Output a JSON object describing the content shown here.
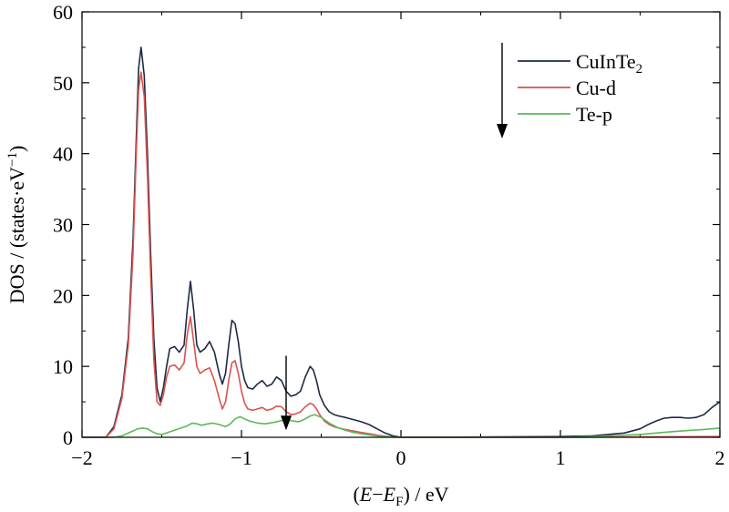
{
  "chart_data": {
    "type": "line",
    "xlabel": "(E−E_F) / eV",
    "ylabel": "DOS / (states·eV⁻¹)",
    "xlim": [
      -2,
      2
    ],
    "ylim": [
      0,
      60
    ],
    "xticks": [
      "−2",
      "−1",
      "0",
      "1",
      "2"
    ],
    "yticks": [
      "0",
      "10",
      "20",
      "30",
      "40",
      "50",
      "60"
    ],
    "grid": false,
    "legend_position": "top-right",
    "series": [
      {
        "name": "CuInTe₂",
        "color": "#1f2a44",
        "x": [
          -2.0,
          -1.85,
          -1.8,
          -1.75,
          -1.71,
          -1.68,
          -1.66,
          -1.645,
          -1.63,
          -1.61,
          -1.59,
          -1.57,
          -1.55,
          -1.53,
          -1.51,
          -1.49,
          -1.47,
          -1.45,
          -1.42,
          -1.39,
          -1.36,
          -1.34,
          -1.32,
          -1.3,
          -1.28,
          -1.26,
          -1.23,
          -1.2,
          -1.17,
          -1.14,
          -1.12,
          -1.1,
          -1.08,
          -1.06,
          -1.04,
          -1.02,
          -1.0,
          -0.98,
          -0.96,
          -0.93,
          -0.9,
          -0.87,
          -0.84,
          -0.81,
          -0.78,
          -0.75,
          -0.72,
          -0.69,
          -0.66,
          -0.63,
          -0.6,
          -0.57,
          -0.55,
          -0.53,
          -0.51,
          -0.48,
          -0.45,
          -0.42,
          -0.39,
          -0.35,
          -0.3,
          -0.25,
          -0.2,
          -0.15,
          -0.1,
          -0.05,
          0.0,
          0.2,
          0.6,
          1.0,
          1.2,
          1.4,
          1.5,
          1.55,
          1.6,
          1.65,
          1.7,
          1.75,
          1.8,
          1.85,
          1.9,
          1.95,
          2.0
        ],
        "y": [
          0.0,
          0.0,
          1.5,
          6.0,
          14.0,
          28.0,
          42.0,
          52.0,
          55.0,
          51.0,
          40.0,
          26.0,
          14.0,
          7.0,
          5.0,
          7.0,
          10.0,
          12.5,
          12.8,
          12.0,
          13.0,
          18.0,
          22.0,
          18.0,
          13.0,
          12.0,
          12.5,
          13.5,
          12.0,
          9.0,
          7.5,
          9.0,
          13.0,
          16.5,
          16.0,
          13.5,
          10.0,
          8.0,
          7.0,
          6.8,
          7.5,
          8.0,
          7.2,
          7.5,
          8.5,
          8.0,
          6.5,
          5.8,
          6.0,
          6.5,
          8.5,
          10.0,
          9.5,
          8.0,
          6.0,
          4.5,
          3.6,
          3.2,
          3.0,
          2.8,
          2.5,
          2.2,
          1.8,
          1.2,
          0.6,
          0.2,
          0.0,
          0.0,
          0.05,
          0.1,
          0.2,
          0.6,
          1.2,
          1.8,
          2.3,
          2.7,
          2.8,
          2.8,
          2.7,
          2.8,
          3.2,
          4.2,
          5.0
        ]
      },
      {
        "name": "Cu-d",
        "color": "#d9534f",
        "x": [
          -2.0,
          -1.85,
          -1.8,
          -1.75,
          -1.71,
          -1.68,
          -1.66,
          -1.645,
          -1.63,
          -1.61,
          -1.59,
          -1.57,
          -1.55,
          -1.53,
          -1.51,
          -1.49,
          -1.47,
          -1.45,
          -1.42,
          -1.39,
          -1.36,
          -1.34,
          -1.32,
          -1.3,
          -1.28,
          -1.26,
          -1.23,
          -1.2,
          -1.17,
          -1.14,
          -1.12,
          -1.1,
          -1.08,
          -1.06,
          -1.04,
          -1.02,
          -1.0,
          -0.98,
          -0.96,
          -0.93,
          -0.9,
          -0.87,
          -0.84,
          -0.81,
          -0.78,
          -0.75,
          -0.72,
          -0.69,
          -0.66,
          -0.63,
          -0.6,
          -0.57,
          -0.55,
          -0.53,
          -0.51,
          -0.48,
          -0.45,
          -0.42,
          -0.39,
          -0.35,
          -0.3,
          -0.25,
          -0.2,
          -0.15,
          -0.1,
          -0.05,
          0.0,
          1.0,
          1.5,
          2.0
        ],
        "y": [
          0.0,
          0.0,
          1.2,
          5.5,
          13.0,
          26.0,
          40.0,
          49.0,
          51.5,
          48.0,
          37.0,
          23.0,
          11.0,
          5.0,
          4.5,
          6.0,
          8.5,
          10.0,
          10.2,
          9.5,
          10.5,
          14.5,
          17.0,
          13.5,
          10.0,
          9.0,
          9.5,
          9.8,
          8.0,
          5.5,
          4.0,
          5.0,
          8.0,
          10.5,
          10.8,
          9.0,
          6.5,
          4.8,
          4.0,
          3.8,
          4.0,
          4.2,
          3.8,
          4.0,
          4.4,
          4.3,
          3.6,
          3.2,
          3.3,
          3.6,
          4.3,
          4.8,
          4.6,
          4.0,
          3.2,
          2.3,
          1.8,
          1.5,
          1.3,
          1.1,
          0.9,
          0.7,
          0.5,
          0.3,
          0.15,
          0.05,
          0.0,
          0.0,
          0.05,
          0.1
        ]
      },
      {
        "name": "Te-p",
        "color": "#5cb85c",
        "x": [
          -2.0,
          -1.8,
          -1.75,
          -1.72,
          -1.68,
          -1.65,
          -1.62,
          -1.59,
          -1.56,
          -1.53,
          -1.5,
          -1.46,
          -1.42,
          -1.38,
          -1.34,
          -1.31,
          -1.28,
          -1.25,
          -1.21,
          -1.18,
          -1.14,
          -1.1,
          -1.07,
          -1.04,
          -1.01,
          -0.98,
          -0.95,
          -0.9,
          -0.85,
          -0.8,
          -0.76,
          -0.72,
          -0.68,
          -0.64,
          -0.6,
          -0.57,
          -0.54,
          -0.5,
          -0.45,
          -0.4,
          -0.35,
          -0.3,
          -0.25,
          -0.2,
          -0.15,
          -0.1,
          -0.05,
          0.0,
          1.0,
          1.2,
          1.4,
          1.5,
          1.6,
          1.7,
          1.8,
          1.9,
          2.0
        ],
        "y": [
          0.0,
          0.0,
          0.2,
          0.5,
          0.9,
          1.2,
          1.3,
          1.2,
          0.8,
          0.5,
          0.4,
          0.7,
          1.0,
          1.3,
          1.6,
          2.0,
          1.9,
          1.7,
          1.9,
          2.0,
          1.8,
          1.5,
          1.9,
          2.6,
          2.9,
          2.6,
          2.3,
          2.0,
          1.9,
          2.1,
          2.3,
          2.5,
          2.3,
          2.2,
          2.6,
          3.0,
          3.2,
          2.8,
          2.0,
          1.4,
          1.0,
          0.7,
          0.5,
          0.35,
          0.2,
          0.1,
          0.03,
          0.0,
          0.0,
          0.1,
          0.3,
          0.4,
          0.6,
          0.8,
          0.95,
          1.1,
          1.3
        ]
      }
    ],
    "annotations": [
      {
        "type": "arrow",
        "direction": "down",
        "x": -0.72,
        "y_from": 11.5,
        "y_to": 1.0
      }
    ]
  }
}
